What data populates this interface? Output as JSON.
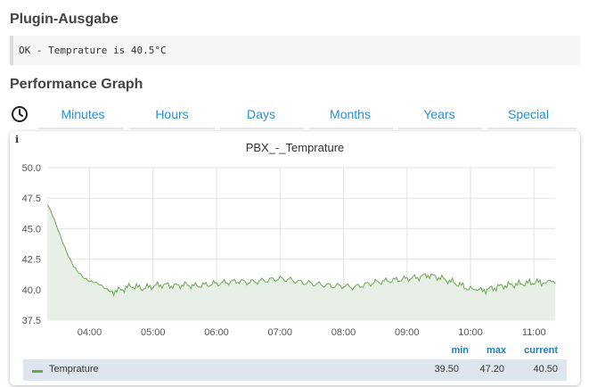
{
  "plugin": {
    "title": "Plugin-Ausgabe",
    "output": "OK - Temprature is 40.5°C"
  },
  "performance": {
    "title": "Performance Graph",
    "tabs": [
      "Minutes",
      "Hours",
      "Days",
      "Months",
      "Years",
      "Special"
    ],
    "info_label": "i",
    "clock_icon": "clock-icon"
  },
  "chart_data": {
    "type": "area",
    "title": "PBX_-_Temprature",
    "xlabel": "",
    "ylabel": "",
    "ylim": [
      37.5,
      50.0
    ],
    "yticks": [
      "37.5",
      "40.0",
      "42.5",
      "45.0",
      "47.5",
      "50.0"
    ],
    "xlim": [
      "03:20",
      "11:20"
    ],
    "xticks": [
      "04:00",
      "05:00",
      "06:00",
      "07:00",
      "08:00",
      "09:00",
      "10:00",
      "11:00"
    ],
    "grid": true,
    "series": [
      {
        "name": "Temprature",
        "color": "#6aa84f",
        "fill": "#e7efe6",
        "x": [
          "03:20",
          "03:25",
          "03:30",
          "03:35",
          "03:40",
          "03:45",
          "03:50",
          "03:55",
          "04:00",
          "04:05",
          "04:10",
          "04:15",
          "04:20",
          "04:30",
          "04:40",
          "04:50",
          "05:00",
          "05:10",
          "05:20",
          "05:30",
          "05:40",
          "05:50",
          "06:00",
          "06:10",
          "06:20",
          "06:30",
          "06:40",
          "06:50",
          "07:00",
          "07:10",
          "07:20",
          "07:30",
          "07:40",
          "07:50",
          "08:00",
          "08:10",
          "08:20",
          "08:30",
          "08:40",
          "08:50",
          "09:00",
          "09:10",
          "09:20",
          "09:30",
          "09:40",
          "09:50",
          "10:00",
          "10:05",
          "10:10",
          "10:20",
          "10:30",
          "10:40",
          "10:50",
          "11:00",
          "11:10",
          "11:15",
          "11:20"
        ],
        "values": [
          47.3,
          46.4,
          45.2,
          44.0,
          42.9,
          42.0,
          41.4,
          40.9,
          40.6,
          40.5,
          40.3,
          40.0,
          39.8,
          40.0,
          40.3,
          40.1,
          40.3,
          40.4,
          40.3,
          40.4,
          40.3,
          40.4,
          40.5,
          40.6,
          40.7,
          40.6,
          40.7,
          40.8,
          40.9,
          40.8,
          40.6,
          40.5,
          40.4,
          40.3,
          40.3,
          40.2,
          40.4,
          40.6,
          40.7,
          40.8,
          40.9,
          41.0,
          41.2,
          41.0,
          40.7,
          40.4,
          40.0,
          39.7,
          39.9,
          40.1,
          40.3,
          40.4,
          40.5,
          40.6,
          40.6,
          40.8,
          40.5
        ]
      }
    ]
  },
  "stats": {
    "headers": {
      "min": "min",
      "max": "max",
      "current": "current"
    },
    "rows": [
      {
        "name": "Temprature",
        "min": "39.50",
        "max": "47.20",
        "current": "40.50"
      }
    ]
  }
}
